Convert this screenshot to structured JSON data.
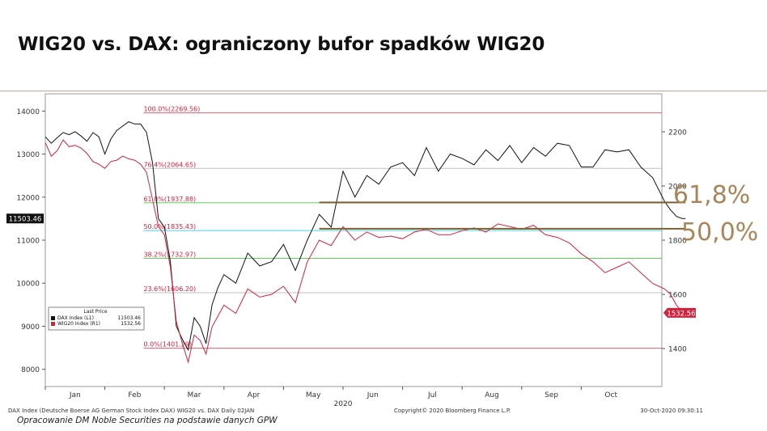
{
  "title": "WIG20 vs. DAX: ograniczony bufor spadków WIG20",
  "source_note": "Opracowanie DM Noble Securities na podstawie danych GPW",
  "annotations": {
    "fib_618": "61,8%",
    "fib_500": "50,0%"
  },
  "colors": {
    "dax": "#111111",
    "wig20": "#d2223c",
    "annotation": "#a8865a",
    "fib_label": "#d2223c",
    "level_line": "#7a6030"
  },
  "chart_data": {
    "type": "line",
    "x_months": [
      "Jan",
      "Feb",
      "Mar",
      "Apr",
      "May",
      "Jun",
      "Jul",
      "Aug",
      "Sep",
      "Oct"
    ],
    "x_year_label": "2020",
    "y_left": {
      "ticks": [
        "14000",
        "13000",
        "12000",
        "11000",
        "10000",
        "9000",
        "8000"
      ],
      "range": [
        7600,
        14400
      ]
    },
    "y_right": {
      "ticks": [
        "2200",
        "2000",
        "1800",
        "1600",
        "1400"
      ],
      "range": [
        1260,
        2340
      ]
    },
    "grid": false,
    "last_price_tags": {
      "dax": "11503.46",
      "wig20": "1532.56"
    },
    "legend": {
      "header": "Last Price",
      "items": [
        {
          "name": "DAX Index (L1)",
          "value": "11503.46"
        },
        {
          "name": "WIG20 Index (R1)",
          "value": "1532.56"
        }
      ],
      "position": "bottom-left"
    },
    "fib_levels": [
      {
        "label": "100.0%(2269.56)",
        "value": 2269.56,
        "color": "#e06070"
      },
      {
        "label": "76.4%(2064.65)",
        "value": 2064.65,
        "color": "#c0c0c0"
      },
      {
        "label": "61.8%(1937.88)",
        "value": 1937.88,
        "color": "#5ad35a"
      },
      {
        "label": "50.0%(1835.43)",
        "value": 1835.43,
        "color": "#4dd2e8"
      },
      {
        "label": "38.2%(1732.97)",
        "value": 1732.97,
        "color": "#5ad35a"
      },
      {
        "label": "23.6%(1606.20)",
        "value": 1606.2,
        "color": "#c0c0c0"
      },
      {
        "label": "0.0%(1401.29)",
        "value": 1401.29,
        "color": "#e06070"
      }
    ],
    "highlight_lines": [
      {
        "value": 1939,
        "from_month": 4.6,
        "to_month": 10.75
      },
      {
        "value": 1842,
        "from_month": 4.6,
        "to_month": 10.75
      }
    ],
    "series": [
      {
        "name": "DAX Index (L1)",
        "axis": "left",
        "x": [
          0.0,
          0.1,
          0.2,
          0.3,
          0.4,
          0.5,
          0.6,
          0.7,
          0.8,
          0.9,
          1.0,
          1.1,
          1.2,
          1.3,
          1.4,
          1.5,
          1.6,
          1.7,
          1.8,
          1.9,
          2.0,
          2.1,
          2.2,
          2.3,
          2.4,
          2.5,
          2.6,
          2.7,
          2.8,
          2.9,
          3.0,
          3.2,
          3.4,
          3.6,
          3.8,
          4.0,
          4.2,
          4.4,
          4.6,
          4.8,
          5.0,
          5.2,
          5.4,
          5.6,
          5.8,
          6.0,
          6.2,
          6.4,
          6.6,
          6.8,
          7.0,
          7.2,
          7.4,
          7.6,
          7.8,
          8.0,
          8.2,
          8.4,
          8.6,
          8.8,
          9.0,
          9.2,
          9.4,
          9.6,
          9.8,
          10.0,
          10.2,
          10.4,
          10.5,
          10.6,
          10.7,
          10.75
        ],
        "values": [
          13400,
          13250,
          13380,
          13500,
          13450,
          13520,
          13420,
          13300,
          13500,
          13400,
          13000,
          13350,
          13550,
          13650,
          13750,
          13700,
          13700,
          13500,
          12800,
          11500,
          11300,
          10500,
          9000,
          8700,
          8450,
          9200,
          9000,
          8600,
          9500,
          9900,
          10200,
          10000,
          10700,
          10400,
          10500,
          10900,
          10300,
          11000,
          11600,
          11300,
          12600,
          12000,
          12500,
          12300,
          12700,
          12800,
          12500,
          13150,
          12600,
          13000,
          12900,
          12750,
          13100,
          12850,
          13200,
          12800,
          13150,
          12950,
          13250,
          13200,
          12700,
          12700,
          13100,
          13050,
          13100,
          12700,
          12450,
          11900,
          11700,
          11550,
          11500,
          11503
        ]
      },
      {
        "name": "WIG20 Index (R1)",
        "axis": "right",
        "x": [
          0.0,
          0.1,
          0.2,
          0.3,
          0.4,
          0.5,
          0.6,
          0.7,
          0.8,
          0.9,
          1.0,
          1.1,
          1.2,
          1.3,
          1.4,
          1.5,
          1.6,
          1.7,
          1.8,
          1.9,
          2.0,
          2.1,
          2.2,
          2.3,
          2.4,
          2.5,
          2.6,
          2.7,
          2.8,
          2.9,
          3.0,
          3.2,
          3.4,
          3.6,
          3.8,
          4.0,
          4.2,
          4.4,
          4.6,
          4.8,
          5.0,
          5.2,
          5.4,
          5.6,
          5.8,
          6.0,
          6.2,
          6.4,
          6.6,
          6.8,
          7.0,
          7.2,
          7.4,
          7.6,
          7.8,
          8.0,
          8.2,
          8.4,
          8.6,
          8.8,
          9.0,
          9.2,
          9.4,
          9.6,
          9.8,
          10.0,
          10.2,
          10.4,
          10.5,
          10.6,
          10.7,
          10.75
        ],
        "values": [
          2160,
          2110,
          2130,
          2170,
          2145,
          2150,
          2140,
          2120,
          2090,
          2080,
          2065,
          2090,
          2095,
          2110,
          2100,
          2095,
          2080,
          2050,
          1950,
          1850,
          1820,
          1700,
          1500,
          1420,
          1350,
          1450,
          1430,
          1380,
          1480,
          1520,
          1560,
          1530,
          1620,
          1590,
          1600,
          1630,
          1570,
          1720,
          1800,
          1780,
          1850,
          1800,
          1830,
          1810,
          1815,
          1805,
          1830,
          1840,
          1820,
          1820,
          1835,
          1845,
          1830,
          1860,
          1850,
          1840,
          1855,
          1820,
          1810,
          1790,
          1750,
          1720,
          1680,
          1700,
          1720,
          1680,
          1640,
          1620,
          1600,
          1560,
          1535,
          1532
        ]
      }
    ]
  }
}
